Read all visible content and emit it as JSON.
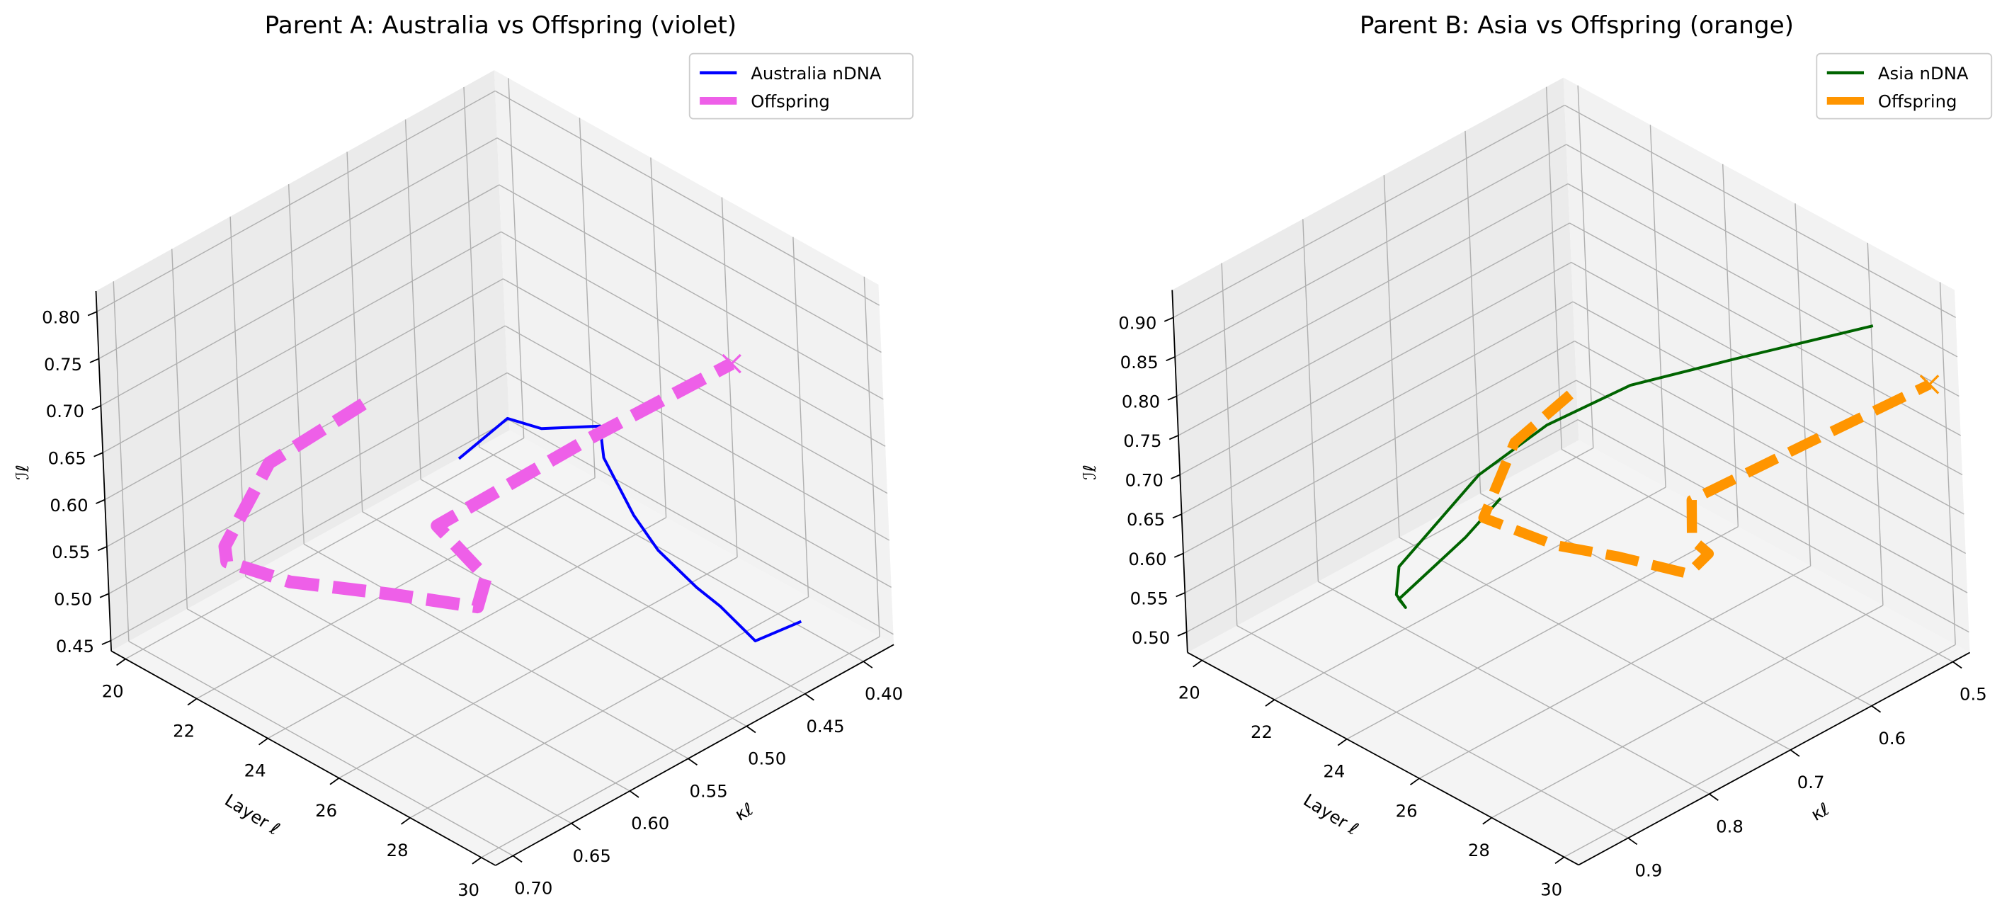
{
  "chart_data": [
    {
      "type": "line3d",
      "title": "Parent A: Australia  vs Offspring (violet)",
      "xlabel": "Layer ℓ",
      "ylabel": "κℓ",
      "zlabel": "ℐℓ",
      "xlim": [
        19.6,
        30.4
      ],
      "ylim": [
        0.374,
        0.715
      ],
      "zlim": [
        0.439,
        0.822
      ],
      "xticks": [
        "20",
        "22",
        "24",
        "26",
        "28",
        "30"
      ],
      "yticks": [
        "0.40",
        "0.45",
        "0.50",
        "0.55",
        "0.60",
        "0.65",
        "0.70"
      ],
      "zticks": [
        "0.45",
        "0.50",
        "0.55",
        "0.60",
        "0.65",
        "0.70",
        "0.75",
        "0.80"
      ],
      "grid": true,
      "legend_position": "top-right",
      "series": [
        {
          "name": "Australia nDNA",
          "color": "#0000ff",
          "style": "solid",
          "x": [
            20,
            21,
            22,
            23,
            24,
            25,
            26,
            27,
            28,
            29,
            30
          ],
          "y": [
            0.429,
            0.416,
            0.417,
            0.397,
            0.424,
            0.43,
            0.44,
            0.438,
            0.448,
            0.449,
            0.439
          ],
          "z": [
            0.455,
            0.51,
            0.521,
            0.531,
            0.537,
            0.501,
            0.492,
            0.472,
            0.48,
            0.465,
            0.5
          ]
        },
        {
          "name": "Offspring",
          "color": "#ee5fe8",
          "style": "dashed",
          "end_marker": "x",
          "x": [
            20,
            21,
            22,
            23,
            24,
            25,
            26,
            27,
            28,
            29,
            30
          ],
          "y": [
            0.507,
            0.617,
            0.686,
            0.714,
            0.691,
            0.637,
            0.593,
            0.614,
            0.682,
            0.58,
            0.488
          ],
          "z": [
            0.567,
            0.601,
            0.581,
            0.605,
            0.589,
            0.56,
            0.537,
            0.604,
            0.727,
            0.771,
            0.808
          ]
        }
      ]
    },
    {
      "type": "line3d",
      "title": "Parent B: Asia  vs Offspring (orange)",
      "xlabel": "Layer ℓ",
      "ylabel": "κℓ",
      "zlabel": "ℐℓ",
      "xlim": [
        19.6,
        30.4
      ],
      "ylim": [
        0.479,
        0.961
      ],
      "zlim": [
        0.474,
        0.935
      ],
      "xticks": [
        "20",
        "22",
        "24",
        "26",
        "28",
        "30"
      ],
      "yticks": [
        "0.5",
        "0.6",
        "0.7",
        "0.8",
        "0.9"
      ],
      "zticks": [
        "0.50",
        "0.55",
        "0.60",
        "0.65",
        "0.70",
        "0.75",
        "0.80",
        "0.85",
        "0.90"
      ],
      "grid": true,
      "legend_position": "top-right",
      "series": [
        {
          "name": "Asia nDNA",
          "color": "#006400",
          "style": "solid",
          "x": [
            20,
            21,
            22,
            23,
            24,
            25,
            26,
            27,
            28,
            29,
            30
          ],
          "y": [
            0.593,
            0.68,
            0.806,
            0.841,
            0.894,
            0.932,
            0.874,
            0.832,
            0.772,
            0.687,
            0.562
          ],
          "z": [
            0.474,
            0.498,
            0.515,
            0.549,
            0.62,
            0.702,
            0.811,
            0.876,
            0.918,
            0.929,
            0.926
          ]
        },
        {
          "name": "Offspring",
          "color": "#ff9500",
          "style": "dashed",
          "end_marker": "x",
          "x": [
            20,
            21,
            22,
            23,
            24,
            25,
            26,
            27,
            28,
            29,
            30
          ],
          "y": [
            0.504,
            0.616,
            0.7,
            0.657,
            0.624,
            0.584,
            0.601,
            0.663,
            0.704,
            0.6,
            0.497
          ],
          "z": [
            0.556,
            0.583,
            0.559,
            0.525,
            0.517,
            0.498,
            0.558,
            0.636,
            0.734,
            0.775,
            0.815
          ]
        }
      ]
    }
  ]
}
